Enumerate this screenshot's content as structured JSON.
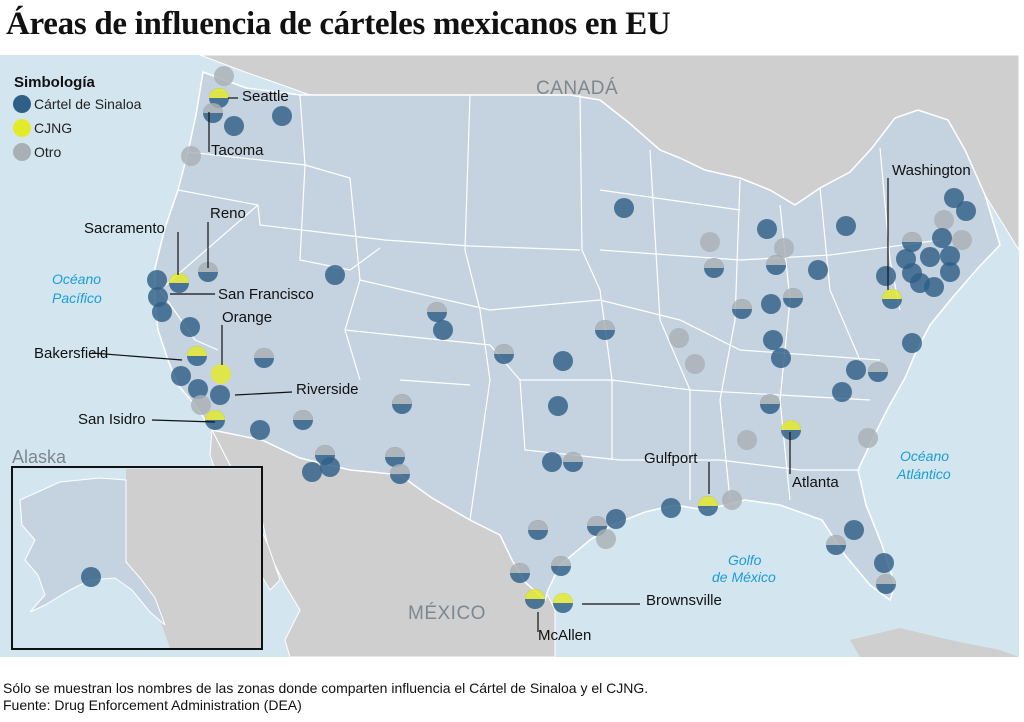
{
  "title": "Áreas de influencia de cárteles mexicanos en EU",
  "colors": {
    "ocean": "#d3e6ef",
    "land_foreign": "#cfcfcf",
    "land_us": "#c5d2e0",
    "sinaloa": "#2f5f86",
    "cjng": "#e3ea2a",
    "otro": "#a9b0b5"
  },
  "legend": {
    "title": "Simbología",
    "items": [
      {
        "label": "Cártel de Sinaloa",
        "key": "sinaloa"
      },
      {
        "label": "CJNG",
        "key": "cjng"
      },
      {
        "label": "Otro",
        "key": "otro"
      }
    ]
  },
  "regions": {
    "canada": "CANADÁ",
    "mexico": "MÉXICO",
    "alaska": "Alaska"
  },
  "oceans": {
    "pacific": [
      "Océano",
      "Pacífico"
    ],
    "atlantic": [
      "Océano",
      "Atlántico"
    ],
    "gulf": [
      "Golfo",
      "de México"
    ]
  },
  "cities": [
    {
      "name": "Seattle"
    },
    {
      "name": "Tacoma"
    },
    {
      "name": "Reno"
    },
    {
      "name": "Sacramento"
    },
    {
      "name": "San Francisco"
    },
    {
      "name": "Orange"
    },
    {
      "name": "Bakersfield"
    },
    {
      "name": "Riverside"
    },
    {
      "name": "San Isidro"
    },
    {
      "name": "Gulfport"
    },
    {
      "name": "Atlanta"
    },
    {
      "name": "Washington"
    },
    {
      "name": "Brownsville"
    },
    {
      "name": "McAllen"
    }
  ],
  "footer": {
    "note": "Sólo se muestran los nombres de las zonas donde comparten influencia el Cártel de Sinaloa y el CJNG.",
    "source": "Fuente: Drug Enforcement Administration (DEA)"
  }
}
